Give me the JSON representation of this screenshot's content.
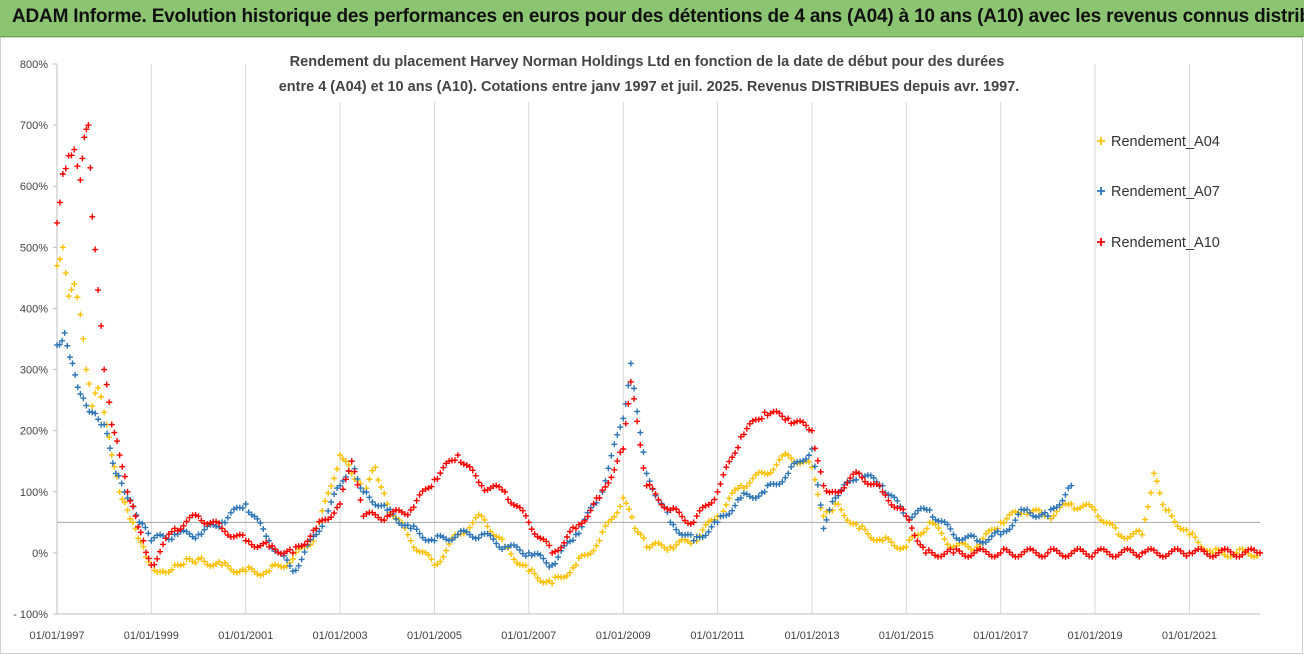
{
  "banner": {
    "text": "ADAM Informe. Evolution historique des performances en euros pour des détentions de 4 ans (A04) à 10 ans (A10) avec les revenus connus distribués"
  },
  "chart_data": {
    "type": "scatter",
    "title_line1": "Rendement du placement Harvey Norman Holdings Ltd en fonction de la date de début pour des durées",
    "title_line2": "entre 4 (A04) et 10 ans (A10). Cotations entre janv 1997 et juil. 2025. Revenus DISTRIBUES depuis avr. 1997.",
    "xlabel": "",
    "ylabel": "",
    "xlim": [
      "1997-01-01",
      "2022-07-01"
    ],
    "ylim": [
      -1.0,
      8.0
    ],
    "x_ticks": [
      "01/01/1997",
      "01/01/1999",
      "01/01/2001",
      "01/01/2003",
      "01/01/2005",
      "01/01/2007",
      "01/01/2009",
      "01/01/2011",
      "01/01/2013",
      "01/01/2015",
      "01/01/2017",
      "01/01/2019",
      "01/01/2021"
    ],
    "y_ticks": [
      "- 100%",
      "0%",
      "100%",
      "200%",
      "300%",
      "400%",
      "500%",
      "600%",
      "700%",
      "800%"
    ],
    "y_tick_values": [
      -1,
      0,
      1,
      2,
      3,
      4,
      5,
      6,
      7,
      8
    ],
    "grid": "vertical",
    "legend_position": "right",
    "series": [
      {
        "name": "Rendement_A04",
        "color": "#ffc000",
        "points": [
          [
            "1997-01-01",
            4.7
          ],
          [
            "1997-02-15",
            5.0
          ],
          [
            "1997-04-01",
            4.2
          ],
          [
            "1997-05-15",
            4.4
          ],
          [
            "1997-07-01",
            3.9
          ],
          [
            "1997-08-15",
            3.0
          ],
          [
            "1997-10-01",
            2.4
          ],
          [
            "1997-11-15",
            2.7
          ],
          [
            "1998-01-01",
            2.3
          ],
          [
            "1998-03-01",
            1.6
          ],
          [
            "1998-05-01",
            1.0
          ],
          [
            "1998-07-01",
            0.7
          ],
          [
            "1998-09-01",
            0.4
          ],
          [
            "1998-11-01",
            0.1
          ],
          [
            "1999-01-01",
            -0.2
          ],
          [
            "1999-04-01",
            -0.3
          ],
          [
            "1999-07-01",
            -0.2
          ],
          [
            "1999-10-01",
            -0.1
          ],
          [
            "2000-01-01",
            -0.1
          ],
          [
            "2000-07-01",
            -0.2
          ],
          [
            "2001-01-01",
            -0.3
          ],
          [
            "2001-07-01",
            -0.3
          ],
          [
            "2002-01-01",
            -0.1
          ],
          [
            "2002-07-01",
            0.3
          ],
          [
            "2003-01-01",
            1.6
          ],
          [
            "2003-04-01",
            1.3
          ],
          [
            "2003-07-01",
            1.0
          ],
          [
            "2003-10-01",
            1.4
          ],
          [
            "2004-01-01",
            0.8
          ],
          [
            "2004-07-01",
            0.2
          ],
          [
            "2005-01-01",
            -0.2
          ],
          [
            "2005-07-01",
            0.3
          ],
          [
            "2006-01-01",
            0.6
          ],
          [
            "2006-07-01",
            0.1
          ],
          [
            "2007-01-01",
            -0.3
          ],
          [
            "2007-07-01",
            -0.5
          ],
          [
            "2008-01-01",
            -0.2
          ],
          [
            "2008-07-01",
            0.2
          ],
          [
            "2009-01-01",
            0.9
          ],
          [
            "2009-04-01",
            0.4
          ],
          [
            "2009-07-01",
            0.1
          ],
          [
            "2010-01-01",
            0.1
          ],
          [
            "2010-07-01",
            0.2
          ],
          [
            "2011-01-01",
            0.6
          ],
          [
            "2011-07-01",
            1.1
          ],
          [
            "2012-01-01",
            1.3
          ],
          [
            "2012-07-01",
            1.6
          ],
          [
            "2013-01-01",
            1.4
          ],
          [
            "2013-04-01",
            0.6
          ],
          [
            "2013-07-01",
            0.8
          ],
          [
            "2014-01-01",
            0.4
          ],
          [
            "2014-07-01",
            0.2
          ],
          [
            "2015-01-01",
            0.1
          ],
          [
            "2015-07-01",
            0.5
          ],
          [
            "2016-01-01",
            0.1
          ],
          [
            "2016-07-01",
            0.1
          ],
          [
            "2017-01-01",
            0.5
          ],
          [
            "2017-07-01",
            0.7
          ],
          [
            "2018-01-01",
            0.6
          ],
          [
            "2018-07-01",
            0.8
          ],
          [
            "2019-01-01",
            0.7
          ],
          [
            "2019-07-01",
            0.3
          ],
          [
            "2020-01-01",
            0.3
          ],
          [
            "2020-04-01",
            1.3
          ],
          [
            "2020-07-01",
            0.7
          ],
          [
            "2021-01-01",
            0.3
          ],
          [
            "2021-07-01",
            0.0
          ],
          [
            "2022-01-01",
            0.0
          ],
          [
            "2022-07-01",
            0.0
          ]
        ]
      },
      {
        "name": "Rendement_A07",
        "color": "#2e75b6",
        "points": [
          [
            "1997-01-01",
            3.4
          ],
          [
            "1997-03-01",
            3.6
          ],
          [
            "1997-05-01",
            3.1
          ],
          [
            "1997-07-01",
            2.6
          ],
          [
            "1997-10-01",
            2.3
          ],
          [
            "1998-01-01",
            2.1
          ],
          [
            "1998-04-01",
            1.3
          ],
          [
            "1998-07-01",
            0.9
          ],
          [
            "1998-10-01",
            0.5
          ],
          [
            "1999-01-01",
            0.2
          ],
          [
            "1999-07-01",
            0.3
          ],
          [
            "2000-01-01",
            0.3
          ],
          [
            "2000-07-01",
            0.5
          ],
          [
            "2001-01-01",
            0.8
          ],
          [
            "2001-07-01",
            0.2
          ],
          [
            "2002-01-01",
            -0.3
          ],
          [
            "2002-07-01",
            0.3
          ],
          [
            "2003-01-01",
            1.1
          ],
          [
            "2003-04-01",
            1.5
          ],
          [
            "2003-07-01",
            1.0
          ],
          [
            "2004-01-01",
            0.7
          ],
          [
            "2004-07-01",
            0.4
          ],
          [
            "2005-01-01",
            0.2
          ],
          [
            "2005-07-01",
            0.3
          ],
          [
            "2006-01-01",
            0.3
          ],
          [
            "2006-07-01",
            0.1
          ],
          [
            "2007-01-01",
            0.0
          ],
          [
            "2007-07-01",
            -0.2
          ],
          [
            "2008-01-01",
            0.3
          ],
          [
            "2008-07-01",
            0.9
          ],
          [
            "2009-01-01",
            2.2
          ],
          [
            "2009-03-01",
            3.1
          ],
          [
            "2009-07-01",
            1.3
          ],
          [
            "2010-01-01",
            0.5
          ],
          [
            "2010-07-01",
            0.2
          ],
          [
            "2011-01-01",
            0.5
          ],
          [
            "2011-07-01",
            0.9
          ],
          [
            "2012-01-01",
            1.0
          ],
          [
            "2012-07-01",
            1.3
          ],
          [
            "2013-01-01",
            1.7
          ],
          [
            "2013-04-01",
            0.4
          ],
          [
            "2013-07-01",
            0.9
          ],
          [
            "2014-01-01",
            1.3
          ],
          [
            "2014-07-01",
            1.1
          ],
          [
            "2015-01-01",
            0.6
          ],
          [
            "2015-07-01",
            0.7
          ],
          [
            "2016-01-01",
            0.3
          ],
          [
            "2016-07-01",
            0.2
          ],
          [
            "2017-01-01",
            0.3
          ],
          [
            "2017-07-01",
            0.7
          ],
          [
            "2018-01-01",
            0.6
          ],
          [
            "2018-07-01",
            1.1
          ]
        ]
      },
      {
        "name": "Rendement_A10",
        "color": "#ff0000",
        "points": [
          [
            "1997-01-01",
            5.4
          ],
          [
            "1997-02-15",
            6.2
          ],
          [
            "1997-04-01",
            6.5
          ],
          [
            "1997-05-15",
            6.6
          ],
          [
            "1997-07-01",
            6.1
          ],
          [
            "1997-08-01",
            6.8
          ],
          [
            "1997-09-01",
            7.0
          ],
          [
            "1997-10-01",
            5.5
          ],
          [
            "1997-11-15",
            4.3
          ],
          [
            "1998-01-01",
            3.0
          ],
          [
            "1998-03-01",
            2.1
          ],
          [
            "1998-05-01",
            1.6
          ],
          [
            "1998-07-01",
            1.0
          ],
          [
            "1998-09-01",
            0.6
          ],
          [
            "1998-11-01",
            0.2
          ],
          [
            "1999-01-01",
            -0.2
          ],
          [
            "1999-07-01",
            0.4
          ],
          [
            "2000-01-01",
            0.6
          ],
          [
            "2000-07-01",
            0.4
          ],
          [
            "2001-01-01",
            0.2
          ],
          [
            "2001-07-01",
            0.1
          ],
          [
            "2002-01-01",
            0.0
          ],
          [
            "2002-07-01",
            0.4
          ],
          [
            "2003-01-01",
            0.8
          ],
          [
            "2003-04-01",
            1.5
          ],
          [
            "2003-07-01",
            0.6
          ],
          [
            "2004-01-01",
            0.6
          ],
          [
            "2004-07-01",
            0.7
          ],
          [
            "2005-01-01",
            1.2
          ],
          [
            "2005-07-01",
            1.6
          ],
          [
            "2006-01-01",
            1.1
          ],
          [
            "2006-07-01",
            1.0
          ],
          [
            "2007-01-01",
            0.5
          ],
          [
            "2007-07-01",
            0.0
          ],
          [
            "2008-01-01",
            0.4
          ],
          [
            "2008-07-01",
            0.9
          ],
          [
            "2009-01-01",
            1.7
          ],
          [
            "2009-03-01",
            2.8
          ],
          [
            "2009-07-01",
            1.1
          ],
          [
            "2010-01-01",
            0.7
          ],
          [
            "2010-07-01",
            0.5
          ],
          [
            "2011-01-01",
            1.0
          ],
          [
            "2011-07-01",
            1.9
          ],
          [
            "2012-01-01",
            2.3
          ],
          [
            "2012-07-01",
            2.2
          ],
          [
            "2013-01-01",
            2.0
          ],
          [
            "2013-04-01",
            1.1
          ],
          [
            "2013-07-01",
            1.0
          ],
          [
            "2014-01-01",
            1.3
          ],
          [
            "2014-07-01",
            1.0
          ],
          [
            "2015-01-01",
            0.6
          ],
          [
            "2015-06-01",
            0.0
          ],
          [
            "2016-01-01",
            0.0
          ],
          [
            "2017-01-01",
            0.0
          ],
          [
            "2018-01-01",
            0.0
          ],
          [
            "2019-01-01",
            0.0
          ],
          [
            "2020-01-01",
            0.0
          ],
          [
            "2021-01-01",
            0.0
          ],
          [
            "2022-07-01",
            0.0
          ]
        ]
      }
    ]
  }
}
